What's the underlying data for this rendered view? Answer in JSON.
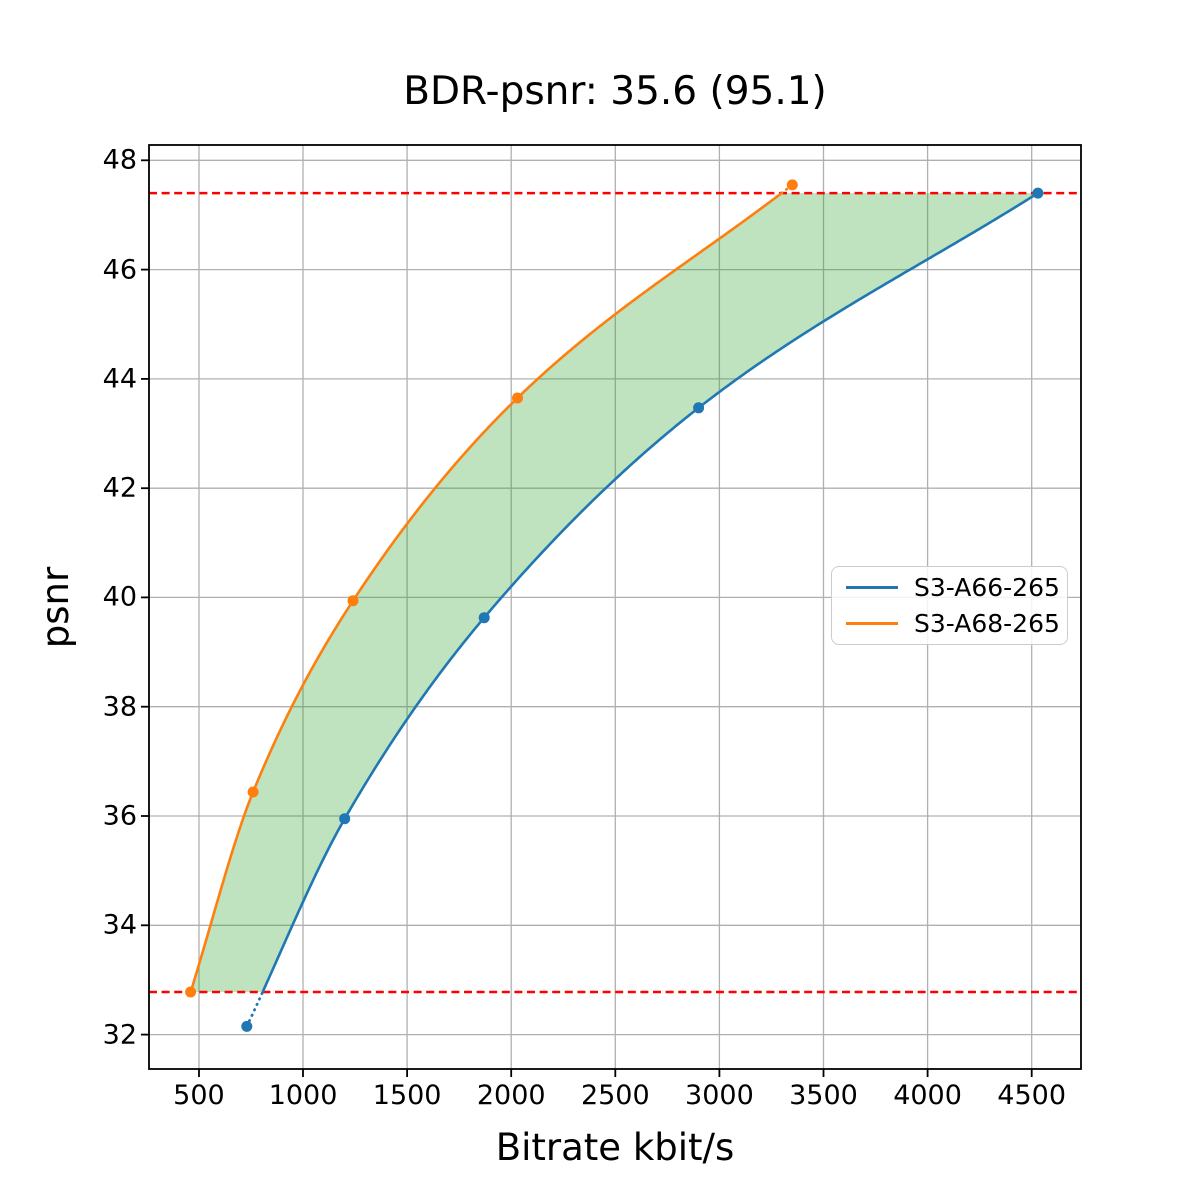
{
  "chart_data": {
    "type": "line",
    "title": "BDR-psnr: 35.6 (95.1)",
    "xlabel": "Bitrate kbit/s",
    "ylabel": "psnr",
    "bdr_value": "35.6",
    "bdr_overlap_value": "95.1",
    "xlim": [
      260,
      4737
    ],
    "ylim": [
      31.37,
      48.28
    ],
    "x_ticks": [
      500,
      1000,
      1500,
      2000,
      2500,
      3000,
      3500,
      4000,
      4500
    ],
    "y_ticks": [
      32,
      34,
      36,
      38,
      40,
      42,
      44,
      46,
      48
    ],
    "grid": true,
    "grid_color": "#b0b0b0",
    "legend_position": "center right",
    "series": [
      {
        "name": "S3-A66-265",
        "color": "#1f77b4",
        "marker": "circle",
        "points": [
          [
            730,
            32.15
          ],
          [
            1200,
            35.95
          ],
          [
            1870,
            39.63
          ],
          [
            2900,
            43.47
          ],
          [
            4530,
            47.4
          ]
        ]
      },
      {
        "name": "S3-A68-265",
        "color": "#ff7f0e",
        "marker": "circle",
        "points": [
          [
            460,
            32.78
          ],
          [
            760,
            36.44
          ],
          [
            1240,
            39.94
          ],
          [
            2030,
            43.65
          ],
          [
            3350,
            47.55
          ]
        ]
      }
    ],
    "hlines": {
      "values": [
        32.78,
        47.4
      ],
      "color": "#ff0000",
      "style": "dashed"
    },
    "shaded_region": {
      "between": [
        "S3-A68-265",
        "S3-A66-265"
      ],
      "y_range": [
        32.78,
        47.4
      ],
      "color": "rgba(44,160,44,0.3)"
    }
  }
}
